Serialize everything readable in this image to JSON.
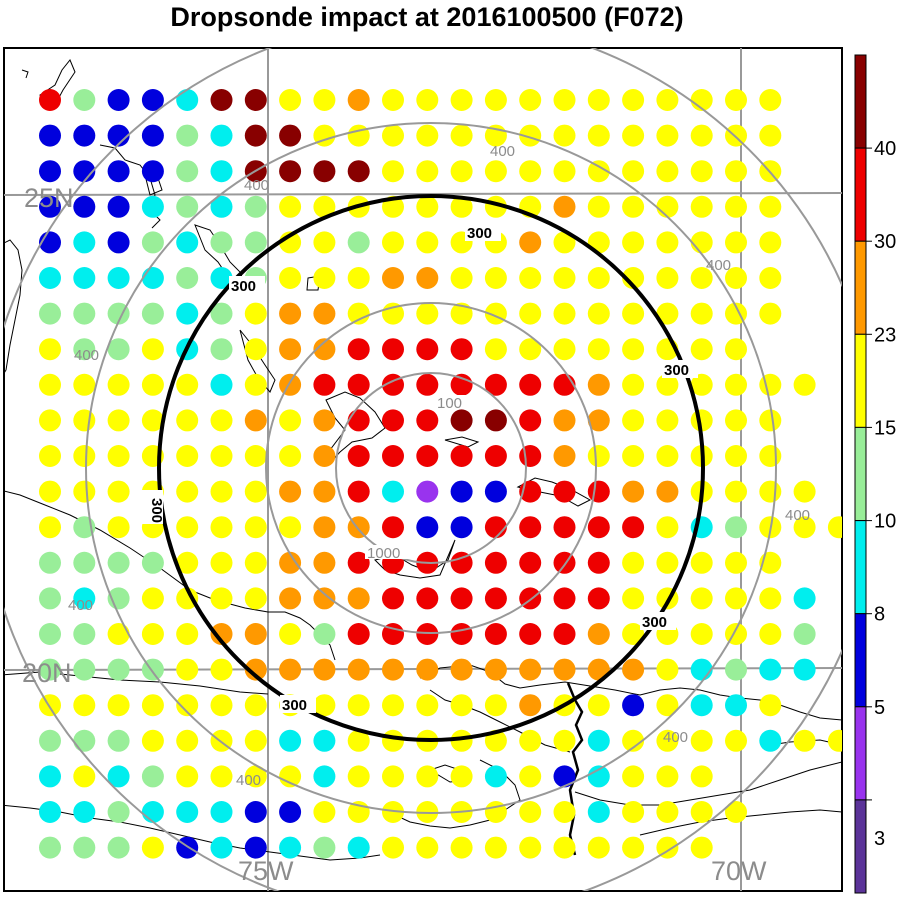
{
  "title": "Dropsonde impact at 2016100500 (F072)",
  "colors": {
    "c3": "#5b3399",
    "c5": "#9933ee",
    "c8": "#0000dd",
    "c10": "#00eeee",
    "c15": "#99ee99",
    "c23": "#ffff00",
    "c30": "#ff9900",
    "c40": "#ee0000",
    "c99": "#880000",
    "grid": "#999999",
    "ring": "#999999",
    "ring300": "#000000"
  },
  "colorbar": {
    "labels": [
      "3",
      "5",
      "8",
      "10",
      "15",
      "23",
      "30",
      "40"
    ],
    "colors": [
      "#5b3399",
      "#9933ee",
      "#0000dd",
      "#00eeee",
      "#99ee99",
      "#ffff00",
      "#ff9900",
      "#ee0000",
      "#880000"
    ]
  },
  "grid_labels": {
    "lat25": "25N",
    "lat20": "20N",
    "lon75": "75W",
    "lon70": "70W"
  },
  "ring_labels": {
    "r100a": "100",
    "r100b": "1000",
    "r300": "300",
    "r400": "400"
  },
  "dot_rows": [
    "4188a99223222222222222",
    "88881a9922222222222222",
    "88881a9999222222222222",
    "888a1a1222222223222222",
    "8a81a11221222232222222",
    "aaaa1a1222332222222222",
    "1111a12332222222222222",
    "2112a1233444422222222",
    "22222a23444444443222222",
    "2222223234449943322222",
    "2222222234444443222222",
    "2222222334a57c444332222",
    "2122222233488444442a1222",
    "1111222334444444422222",
    "1a12222333444444422222a",
    "11222332144444443222221",
    "1111223333333333332a1aa",
    "2222222222222232282aa2",
    "1112222aa2222222a2222a22",
    "a2a12222a2222a28a222",
    "aa1aaa8822222222a2222",
    "11128a8a1a2222222222"
  ]
}
